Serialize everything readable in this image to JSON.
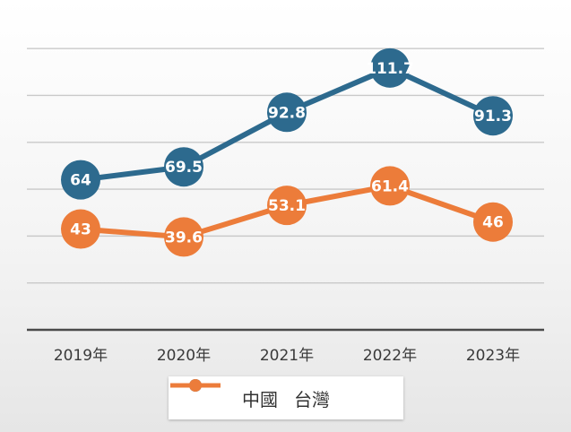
{
  "chart_data": {
    "type": "line",
    "categories": [
      "2019年",
      "2020年",
      "2021年",
      "2022年",
      "2023年"
    ],
    "ylim": [
      0,
      130
    ],
    "grid": true,
    "legend_position": "bottom",
    "series": [
      {
        "name": "中國",
        "color": "#2d6a8e",
        "values": [
          64,
          69.5,
          92.8,
          111.7,
          91.3
        ]
      },
      {
        "name": "台灣",
        "color": "#ec7c3a",
        "values": [
          43,
          39.6,
          53.1,
          61.4,
          46
        ]
      }
    ]
  }
}
